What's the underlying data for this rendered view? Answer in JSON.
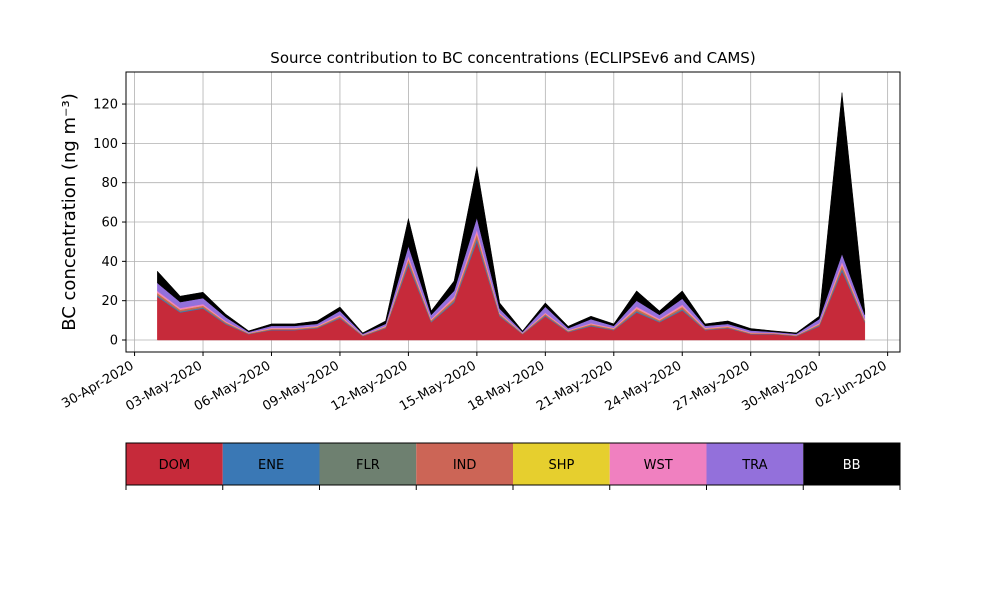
{
  "chart_data": {
    "type": "stacked_area",
    "title": "Source contribution to BC concentrations (ECLIPSEv6 and CAMS)",
    "ylabel": "BC concentration (ng m⁻³)",
    "x": [
      "2020-05-01",
      "2020-05-02",
      "2020-05-03",
      "2020-05-04",
      "2020-05-05",
      "2020-05-06",
      "2020-05-07",
      "2020-05-08",
      "2020-05-09",
      "2020-05-10",
      "2020-05-11",
      "2020-05-12",
      "2020-05-13",
      "2020-05-14",
      "2020-05-15",
      "2020-05-16",
      "2020-05-17",
      "2020-05-18",
      "2020-05-19",
      "2020-05-20",
      "2020-05-21",
      "2020-05-22",
      "2020-05-23",
      "2020-05-24",
      "2020-05-25",
      "2020-05-26",
      "2020-05-27",
      "2020-05-28",
      "2020-05-29",
      "2020-05-30",
      "2020-05-31",
      "2020-06-01"
    ],
    "series": [
      {
        "name": "DOM",
        "color": "#c62a3a",
        "values": [
          22,
          14,
          16,
          8,
          3,
          5,
          5,
          6,
          11,
          2,
          6,
          38,
          9,
          19,
          50,
          12,
          3,
          12,
          4,
          7,
          5,
          14,
          9,
          15,
          5,
          6,
          3,
          3,
          2,
          7,
          35,
          9
        ]
      },
      {
        "name": "ENE",
        "color": "#3a78b5",
        "values": [
          0.5,
          0.4,
          0.4,
          0.3,
          0.1,
          0.2,
          0.2,
          0.2,
          0.3,
          0.1,
          0.2,
          1,
          0.3,
          0.5,
          1.2,
          0.4,
          0.1,
          0.4,
          0.2,
          0.3,
          0.2,
          0.5,
          0.3,
          0.5,
          0.2,
          0.2,
          0.1,
          0.1,
          0.1,
          0.3,
          1,
          0.3
        ]
      },
      {
        "name": "FLR",
        "color": "#6e8070",
        "values": [
          0.3,
          0.2,
          0.2,
          0.2,
          0.1,
          0.1,
          0.1,
          0.1,
          0.2,
          0.1,
          0.1,
          0.5,
          0.2,
          0.3,
          0.6,
          0.2,
          0.1,
          0.2,
          0.1,
          0.2,
          0.1,
          0.3,
          0.2,
          0.3,
          0.1,
          0.1,
          0.1,
          0.1,
          0.1,
          0.2,
          0.5,
          0.2
        ]
      },
      {
        "name": "IND",
        "color": "#cc6556",
        "values": [
          1,
          0.8,
          0.8,
          0.5,
          0.2,
          0.4,
          0.4,
          0.4,
          0.6,
          0.2,
          0.4,
          1.5,
          0.6,
          1,
          2,
          0.6,
          0.2,
          0.6,
          0.3,
          0.5,
          0.4,
          1,
          0.6,
          1,
          0.4,
          0.4,
          0.3,
          0.2,
          0.2,
          0.5,
          1.5,
          0.6
        ]
      },
      {
        "name": "SHP",
        "color": "#e6cf2e",
        "values": [
          0.2,
          0.1,
          0.1,
          0.1,
          0.05,
          0.1,
          0.1,
          0.1,
          0.1,
          0.05,
          0.1,
          0.3,
          0.1,
          0.2,
          0.4,
          0.1,
          0.05,
          0.1,
          0.1,
          0.1,
          0.1,
          0.2,
          0.1,
          0.2,
          0.1,
          0.1,
          0.05,
          0.05,
          0.05,
          0.1,
          0.3,
          0.1
        ]
      },
      {
        "name": "WST",
        "color": "#f080c0",
        "values": [
          1,
          0.8,
          0.8,
          0.5,
          0.2,
          0.4,
          0.4,
          0.4,
          0.6,
          0.2,
          0.4,
          1.5,
          0.6,
          1,
          2,
          0.6,
          0.2,
          0.6,
          0.3,
          0.5,
          0.4,
          1,
          0.6,
          1,
          0.4,
          0.4,
          0.3,
          0.2,
          0.2,
          0.5,
          1.5,
          0.6
        ]
      },
      {
        "name": "TRA",
        "color": "#9370db",
        "values": [
          4,
          3,
          3,
          2,
          0.5,
          1,
          1,
          1,
          2,
          0.5,
          1,
          5,
          2,
          3,
          6,
          2,
          0.5,
          3,
          1,
          2,
          1,
          3,
          2,
          3,
          1,
          1,
          1,
          0.5,
          0.5,
          2,
          4,
          2
        ]
      },
      {
        "name": "BB",
        "color": "#000000",
        "values": [
          6,
          3,
          3,
          1.5,
          0.5,
          1,
          1,
          1.5,
          2,
          0.5,
          1.5,
          14,
          2,
          5,
          26,
          3,
          0.5,
          2,
          1,
          1.5,
          1,
          5,
          2,
          4,
          1,
          1.5,
          1,
          0.5,
          0.5,
          1.5,
          82,
          2
        ]
      }
    ],
    "xlim": [
      "2020-04-29T15:00",
      "2020-06-02T13:00"
    ],
    "xticks": [
      {
        "value": "2020-04-30",
        "label": "30-Apr-2020"
      },
      {
        "value": "2020-05-03",
        "label": "03-May-2020"
      },
      {
        "value": "2020-05-06",
        "label": "06-May-2020"
      },
      {
        "value": "2020-05-09",
        "label": "09-May-2020"
      },
      {
        "value": "2020-05-12",
        "label": "12-May-2020"
      },
      {
        "value": "2020-05-15",
        "label": "15-May-2020"
      },
      {
        "value": "2020-05-18",
        "label": "18-May-2020"
      },
      {
        "value": "2020-05-21",
        "label": "21-May-2020"
      },
      {
        "value": "2020-05-24",
        "label": "24-May-2020"
      },
      {
        "value": "2020-05-27",
        "label": "27-May-2020"
      },
      {
        "value": "2020-05-30",
        "label": "30-May-2020"
      },
      {
        "value": "2020-06-02",
        "label": "02-Jun-2020"
      }
    ],
    "ylim": [
      -6.1,
      136.3
    ],
    "yticks": [
      0,
      20,
      40,
      60,
      80,
      100,
      120
    ],
    "grid": true,
    "legend": "bottom"
  }
}
